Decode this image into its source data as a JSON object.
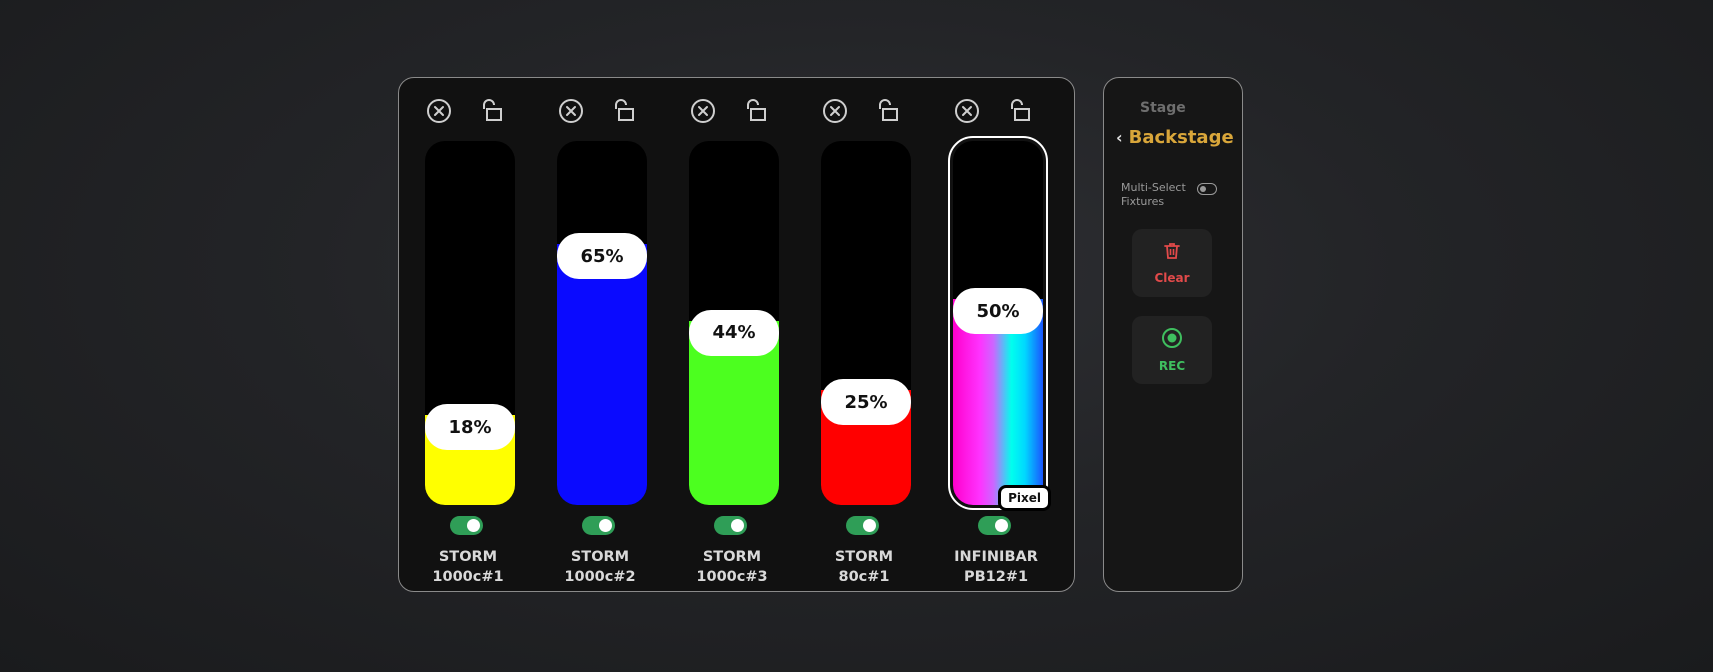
{
  "fixtures": [
    {
      "name": "STORM\n1000c#1",
      "percent_label": "18%",
      "level": 0.18,
      "color": "#ffff00",
      "enabled": true
    },
    {
      "name": "STORM\n1000c#2",
      "percent_label": "65%",
      "level": 0.65,
      "color": "#0a0aff",
      "enabled": true
    },
    {
      "name": "STORM\n1000c#3",
      "percent_label": "44%",
      "level": 0.44,
      "color": "#4cff1f",
      "enabled": true
    },
    {
      "name": "STORM 80c#1",
      "percent_label": "25%",
      "level": 0.25,
      "color": "#ff0000",
      "enabled": true
    },
    {
      "name": "INFINIBAR\nPB12#1",
      "percent_label": "50%",
      "level": 0.5,
      "color": "gradient",
      "enabled": true,
      "selected": true,
      "badge": "Pixel"
    }
  ],
  "sidebar": {
    "stage_label": "Stage",
    "current_section": "Backstage",
    "multi_select_label": "Multi-Select\nFixtures",
    "multi_select_enabled": false,
    "clear_label": "Clear",
    "rec_label": "REC"
  },
  "colors": {
    "accent_gold": "#d9a63a",
    "toggle_on": "#2f9e57",
    "clear_red": "#e24a4a",
    "rec_green": "#3fbf5f"
  }
}
